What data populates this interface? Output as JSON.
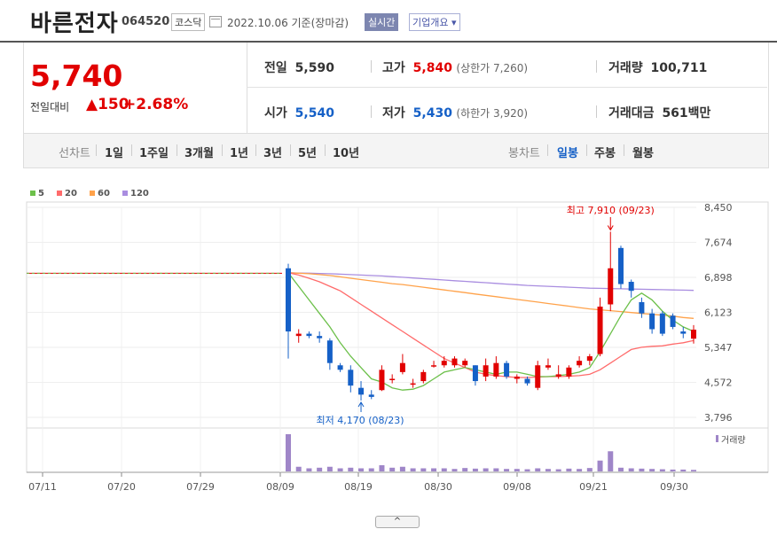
{
  "header": {
    "name": "바른전자",
    "code": "064520",
    "market": "코스닥",
    "date": "2022.10.06 기준(장마감)",
    "realtime_btn": "실시간",
    "company_btn": "기업개요 ▾"
  },
  "quote": {
    "price": "5,740",
    "change_label": "전일대비",
    "change": "▲150",
    "change_pct": "+2.68%",
    "prev_label": "전일",
    "prev": "5,590",
    "high_label": "고가",
    "high": "5,840",
    "upper_limit": "(상한가 7,260)",
    "volume_label": "거래량",
    "volume": "100,711",
    "open_label": "시가",
    "open": "5,540",
    "low_label": "저가",
    "low": "5,430",
    "lower_limit": "(하한가 3,920)",
    "amount_label": "거래대금",
    "amount": "561백만"
  },
  "tabs": {
    "line_label": "선차트",
    "periods": [
      "1일",
      "1주일",
      "3개월",
      "1년",
      "3년",
      "5년",
      "10년"
    ],
    "candle_label": "봉차트",
    "candle_periods": [
      "일봉",
      "주봉",
      "월봉"
    ],
    "active_candle": "일봉"
  },
  "colors": {
    "up": "#e10000",
    "down": "#1560c7",
    "ma5": "#6cc04a",
    "ma20": "#ff6b6b",
    "ma60": "#ffa24a",
    "ma120": "#a98de0",
    "volume": "#9f86c8"
  },
  "chart_data": {
    "type": "candlestick",
    "legend": [
      {
        "name": "5",
        "color": "#6cc04a"
      },
      {
        "name": "20",
        "color": "#ff6b6b"
      },
      {
        "name": "60",
        "color": "#ffa24a"
      },
      {
        "name": "120",
        "color": "#a98de0"
      }
    ],
    "y_ticks": [
      "8,450",
      "7,674",
      "6,898",
      "6,123",
      "5,347",
      "4,572",
      "3,796"
    ],
    "y_range": [
      3796,
      8450
    ],
    "x_ticks": [
      "07/11",
      "07/20",
      "07/29",
      "08/09",
      "08/19",
      "08/30",
      "09/08",
      "09/21",
      "09/30"
    ],
    "annotations": {
      "high": "최고 7,910 (09/23)",
      "low": "최저 4,170 (08/23)"
    },
    "volume_label": "거래량",
    "halt_price": 6990,
    "candles": [
      {
        "o": 7100,
        "h": 7200,
        "l": 5100,
        "c": 5700
      },
      {
        "o": 5600,
        "h": 5750,
        "l": 5450,
        "c": 5650
      },
      {
        "o": 5650,
        "h": 5700,
        "l": 5550,
        "c": 5600
      },
      {
        "o": 5600,
        "h": 5700,
        "l": 5450,
        "c": 5550
      },
      {
        "o": 5500,
        "h": 5550,
        "l": 4850,
        "c": 5000
      },
      {
        "o": 4950,
        "h": 5000,
        "l": 4800,
        "c": 4850
      },
      {
        "o": 4850,
        "h": 4950,
        "l": 4350,
        "c": 4500
      },
      {
        "o": 4450,
        "h": 4600,
        "l": 4170,
        "c": 4300
      },
      {
        "o": 4300,
        "h": 4400,
        "l": 4200,
        "c": 4250
      },
      {
        "o": 4400,
        "h": 4950,
        "l": 4380,
        "c": 4850
      },
      {
        "o": 4650,
        "h": 4750,
        "l": 4550,
        "c": 4650
      },
      {
        "o": 4800,
        "h": 5200,
        "l": 4750,
        "c": 5000
      },
      {
        "o": 4550,
        "h": 4650,
        "l": 4450,
        "c": 4550
      },
      {
        "o": 4600,
        "h": 4850,
        "l": 4550,
        "c": 4800
      },
      {
        "o": 4950,
        "h": 5050,
        "l": 4900,
        "c": 4950
      },
      {
        "o": 4950,
        "h": 5150,
        "l": 4900,
        "c": 5050
      },
      {
        "o": 4950,
        "h": 5150,
        "l": 4900,
        "c": 5100
      },
      {
        "o": 4950,
        "h": 5100,
        "l": 4900,
        "c": 5050
      },
      {
        "o": 4950,
        "h": 4950,
        "l": 4500,
        "c": 4600
      },
      {
        "o": 4700,
        "h": 5100,
        "l": 4600,
        "c": 4950
      },
      {
        "o": 4700,
        "h": 5150,
        "l": 4650,
        "c": 5000
      },
      {
        "o": 5000,
        "h": 5050,
        "l": 4650,
        "c": 4700
      },
      {
        "o": 4650,
        "h": 4750,
        "l": 4550,
        "c": 4700
      },
      {
        "o": 4650,
        "h": 4700,
        "l": 4500,
        "c": 4550
      },
      {
        "o": 4450,
        "h": 5050,
        "l": 4400,
        "c": 4950
      },
      {
        "o": 4900,
        "h": 5100,
        "l": 4850,
        "c": 4950
      },
      {
        "o": 4700,
        "h": 4950,
        "l": 4650,
        "c": 4750
      },
      {
        "o": 4700,
        "h": 4950,
        "l": 4650,
        "c": 4900
      },
      {
        "o": 4950,
        "h": 5150,
        "l": 4900,
        "c": 5050
      },
      {
        "o": 5050,
        "h": 5200,
        "l": 4950,
        "c": 5150
      },
      {
        "o": 5200,
        "h": 6450,
        "l": 5150,
        "c": 6250
      },
      {
        "o": 6300,
        "h": 7910,
        "l": 6150,
        "c": 7100
      },
      {
        "o": 7550,
        "h": 7600,
        "l": 6650,
        "c": 6750
      },
      {
        "o": 6800,
        "h": 6850,
        "l": 6450,
        "c": 6600
      },
      {
        "o": 6350,
        "h": 6450,
        "l": 6000,
        "c": 6100
      },
      {
        "o": 6100,
        "h": 6200,
        "l": 5650,
        "c": 5750
      },
      {
        "o": 6100,
        "h": 6150,
        "l": 5600,
        "c": 5650
      },
      {
        "o": 6050,
        "h": 6100,
        "l": 5750,
        "c": 5800
      },
      {
        "o": 5700,
        "h": 5800,
        "l": 5550,
        "c": 5650
      },
      {
        "o": 5540,
        "h": 5840,
        "l": 5430,
        "c": 5740
      }
    ],
    "ma5": [
      7000,
      6700,
      6400,
      6100,
      5800,
      5450,
      5150,
      4900,
      4650,
      4580,
      4450,
      4400,
      4420,
      4500,
      4650,
      4800,
      4850,
      4900,
      4850,
      4800,
      4750,
      4800,
      4800,
      4750,
      4700,
      4700,
      4720,
      4750,
      4800,
      4900,
      5250,
      5650,
      6050,
      6400,
      6550,
      6400,
      6150,
      5950,
      5800,
      5700
    ],
    "ma20": [
      7000,
      6950,
      6880,
      6800,
      6700,
      6600,
      6450,
      6300,
      6150,
      6000,
      5850,
      5700,
      5550,
      5400,
      5250,
      5100,
      5000,
      4900,
      4800,
      4750,
      4720,
      4700,
      4680,
      4680,
      4690,
      4700,
      4700,
      4710,
      4720,
      4750,
      4850,
      5000,
      5150,
      5300,
      5350,
      5370,
      5380,
      5420,
      5450,
      5500
    ],
    "ma60": [
      7000,
      6990,
      6980,
      6960,
      6940,
      6910,
      6880,
      6850,
      6820,
      6790,
      6760,
      6740,
      6710,
      6680,
      6650,
      6620,
      6590,
      6560,
      6530,
      6500,
      6470,
      6440,
      6410,
      6380,
      6350,
      6320,
      6290,
      6260,
      6230,
      6200,
      6180,
      6160,
      6140,
      6120,
      6100,
      6080,
      6060,
      6040,
      6010,
      5990
    ],
    "ma120": [
      7000,
      6995,
      6990,
      6985,
      6980,
      6970,
      6960,
      6950,
      6940,
      6930,
      6915,
      6900,
      6885,
      6870,
      6855,
      6840,
      6825,
      6810,
      6795,
      6780,
      6765,
      6750,
      6735,
      6720,
      6710,
      6700,
      6690,
      6680,
      6670,
      6660,
      6655,
      6650,
      6645,
      6640,
      6635,
      6630,
      6625,
      6620,
      6615,
      6610
    ],
    "volume": [
      12,
      1.5,
      1,
      1.2,
      1.5,
      1,
      1.2,
      1,
      1,
      2,
      1.2,
      1.5,
      1,
      1,
      1,
      1,
      0.8,
      1.1,
      0.9,
      1,
      1,
      0.8,
      0.8,
      0.7,
      1,
      0.8,
      0.7,
      0.9,
      0.8,
      1.1,
      3.5,
      6.5,
      1.2,
      1,
      0.9,
      0.8,
      0.7,
      0.6,
      0.6,
      0.5
    ]
  }
}
